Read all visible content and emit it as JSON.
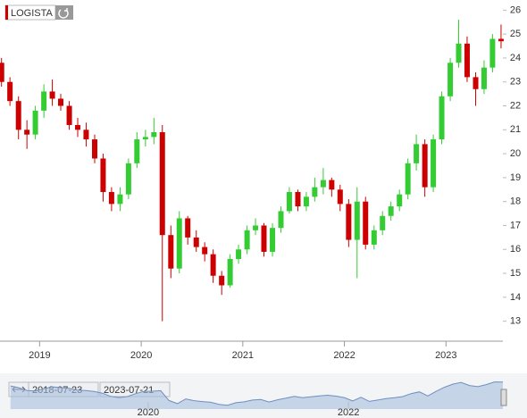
{
  "chart_data": {
    "type": "candlestick",
    "title": "LOGISTA",
    "x": [
      2018.625,
      2018.708,
      2018.792,
      2018.875,
      2018.958,
      2019.042,
      2019.125,
      2019.208,
      2019.292,
      2019.375,
      2019.458,
      2019.542,
      2019.625,
      2019.708,
      2019.792,
      2019.875,
      2019.958,
      2020.042,
      2020.125,
      2020.208,
      2020.292,
      2020.375,
      2020.458,
      2020.542,
      2020.625,
      2020.708,
      2020.792,
      2020.875,
      2020.958,
      2021.042,
      2021.125,
      2021.208,
      2021.292,
      2021.375,
      2021.458,
      2021.542,
      2021.625,
      2021.708,
      2021.792,
      2021.875,
      2021.958,
      2022.042,
      2022.125,
      2022.208,
      2022.292,
      2022.375,
      2022.458,
      2022.542,
      2022.625,
      2022.708,
      2022.792,
      2022.875,
      2022.958,
      2023.042,
      2023.125,
      2023.208,
      2023.292,
      2023.375,
      2023.458,
      2023.542
    ],
    "open": [
      23.8,
      23.0,
      22.2,
      21.0,
      20.8,
      21.8,
      22.6,
      22.3,
      22.0,
      21.2,
      21.0,
      20.6,
      19.8,
      18.4,
      17.9,
      18.3,
      19.6,
      20.6,
      20.7,
      20.9,
      16.6,
      15.2,
      17.3,
      16.5,
      16.1,
      15.8,
      14.9,
      14.5,
      15.6,
      16.0,
      16.8,
      17.0,
      15.9,
      16.9,
      17.6,
      18.4,
      17.8,
      18.2,
      18.6,
      18.9,
      18.5,
      17.9,
      16.4,
      18.0,
      16.2,
      16.8,
      17.4,
      17.8,
      18.3,
      19.6,
      20.4,
      18.6,
      20.6,
      22.4,
      23.8,
      24.6,
      23.2,
      22.7,
      23.6,
      24.8
    ],
    "high": [
      24.0,
      23.2,
      22.4,
      21.4,
      22.0,
      22.9,
      23.1,
      22.5,
      22.2,
      21.5,
      21.3,
      20.8,
      20.0,
      18.6,
      18.6,
      19.8,
      20.9,
      21.0,
      21.5,
      21.2,
      17.0,
      17.6,
      17.4,
      16.8,
      16.3,
      16.0,
      15.1,
      15.8,
      16.2,
      17.0,
      17.3,
      17.1,
      17.1,
      17.8,
      18.6,
      18.5,
      18.4,
      19.0,
      19.4,
      19.0,
      18.7,
      18.1,
      18.6,
      18.2,
      17.0,
      17.6,
      18.0,
      18.5,
      19.8,
      20.8,
      20.6,
      20.8,
      22.6,
      24.0,
      25.6,
      24.9,
      23.4,
      23.9,
      25.0,
      25.4
    ],
    "low": [
      22.8,
      22.0,
      20.6,
      20.2,
      20.6,
      21.5,
      22.0,
      21.8,
      21.0,
      20.7,
      20.3,
      19.6,
      18.0,
      17.6,
      17.6,
      18.1,
      19.4,
      20.3,
      20.4,
      13.0,
      14.8,
      15.0,
      16.2,
      15.9,
      15.5,
      14.6,
      14.1,
      14.4,
      15.4,
      15.8,
      16.6,
      15.7,
      15.7,
      16.7,
      17.5,
      17.6,
      17.6,
      18.0,
      18.3,
      18.2,
      17.6,
      16.1,
      14.8,
      16.0,
      16.0,
      16.6,
      17.2,
      17.6,
      18.1,
      19.3,
      18.2,
      18.4,
      20.4,
      22.2,
      23.6,
      23.0,
      22.0,
      22.5,
      23.4,
      24.4
    ],
    "close": [
      23.0,
      22.2,
      21.0,
      20.8,
      21.8,
      22.6,
      22.3,
      22.0,
      21.2,
      21.0,
      20.6,
      19.8,
      18.4,
      17.9,
      18.3,
      19.6,
      20.6,
      20.7,
      20.9,
      16.6,
      15.2,
      17.3,
      16.5,
      16.1,
      15.8,
      14.9,
      14.5,
      15.6,
      16.0,
      16.8,
      17.0,
      15.9,
      16.9,
      17.6,
      18.4,
      17.8,
      18.2,
      18.6,
      18.9,
      18.5,
      17.9,
      16.4,
      18.0,
      16.2,
      16.8,
      17.4,
      17.8,
      18.3,
      19.6,
      20.4,
      18.6,
      20.6,
      22.4,
      23.8,
      24.6,
      23.2,
      22.7,
      23.6,
      24.8,
      24.7
    ],
    "up_color": "#33cc33",
    "down_color": "#cc0000",
    "xlim": [
      2018.61,
      2023.56
    ],
    "xticks": [
      2019,
      2020,
      2021,
      2022,
      2023
    ],
    "ylim": [
      12.8,
      26.2
    ],
    "yticks": [
      13,
      14,
      15,
      16,
      17,
      18,
      19,
      20,
      21,
      22,
      23,
      24,
      25,
      26
    ],
    "navigator": {
      "range": [
        "2018-07-23",
        "2023-07-21"
      ],
      "xlim": [
        2018.52,
        2023.56
      ],
      "xticks": [
        2020,
        2022
      ],
      "color": "#a8bedd"
    }
  }
}
